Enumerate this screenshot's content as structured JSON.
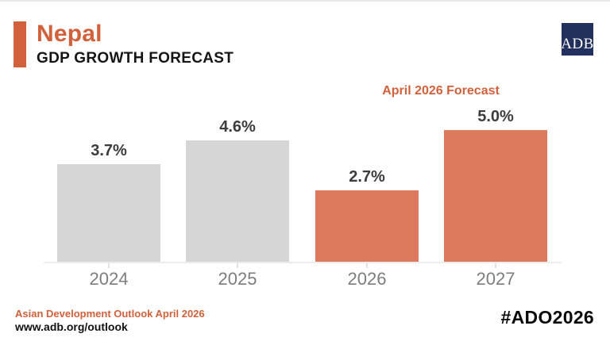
{
  "header": {
    "country": "Nepal",
    "subtitle": "GDP GROWTH FORECAST",
    "logo_text": "ADB"
  },
  "chart": {
    "annotation": "April 2026 Forecast"
  },
  "chart_data": {
    "type": "bar",
    "title": "Nepal GDP Growth Forecast",
    "categories": [
      "2024",
      "2025",
      "2026",
      "2027"
    ],
    "values": [
      3.7,
      4.6,
      2.7,
      5.0
    ],
    "value_labels": [
      "3.7%",
      "4.6%",
      "2.7%",
      "5.0%"
    ],
    "bar_roles": [
      "actual",
      "actual",
      "forecast",
      "forecast"
    ],
    "annotation": "April 2026 Forecast",
    "unit": "%",
    "xlabel": "",
    "ylabel": "",
    "ylim": [
      0,
      5.0
    ],
    "grid": false,
    "legend_position": "none"
  },
  "colors": {
    "accent_orange": "#d2603a",
    "bar_actual": "#d6d6d6",
    "bar_forecast": "#dd7a5e",
    "logo_navy": "#22305e",
    "value_label": "#3c3c3c",
    "year_label": "#7d7d7d"
  },
  "footer": {
    "source": "Asian Development Outlook April 2026",
    "url": "www.adb.org/outlook",
    "hashtag": "#ADO2026"
  }
}
